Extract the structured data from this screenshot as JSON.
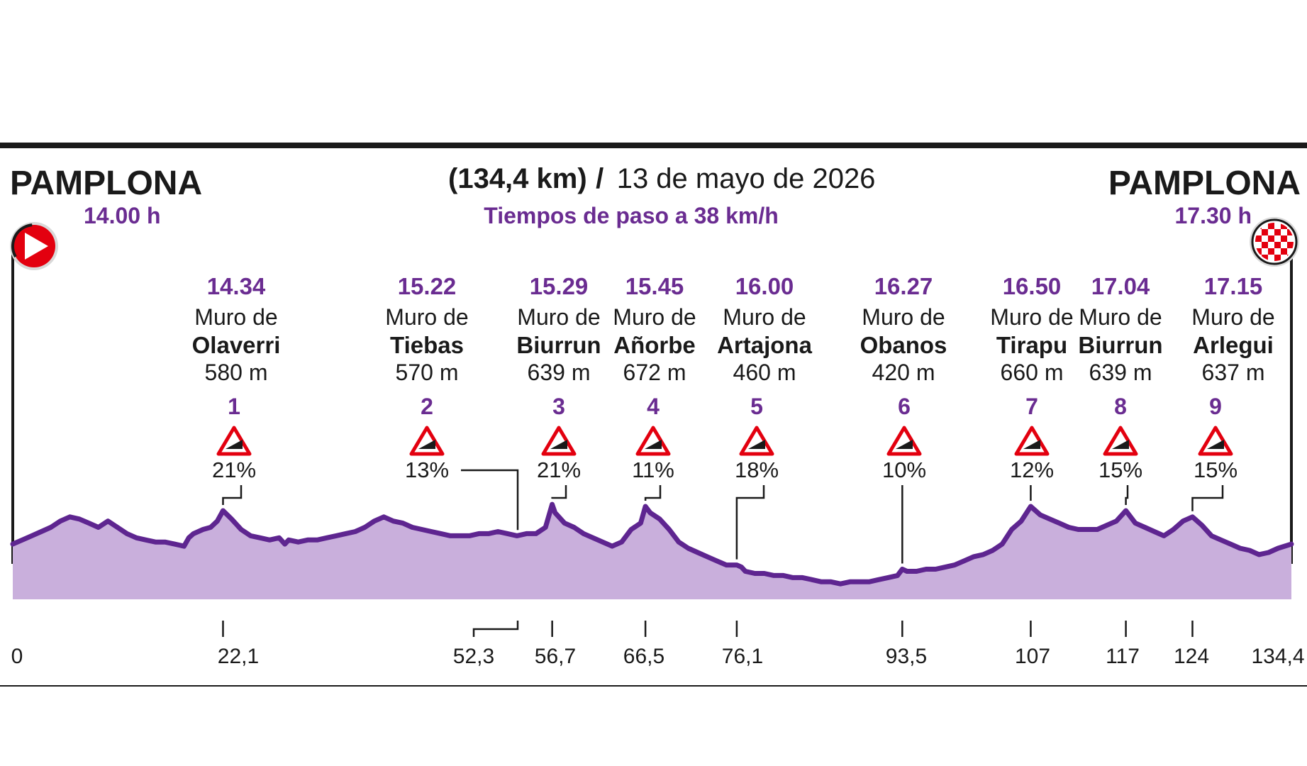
{
  "header": {
    "start_city": "PAMPLONA",
    "start_time": "14.00 h",
    "finish_city": "PAMPLONA",
    "finish_time": "17.30 h",
    "distance": "(134,4 km)",
    "separator": "/",
    "date": "13 de mayo de 2026",
    "subtitle": "Tiempos de paso a 38 km/h"
  },
  "icons": {
    "start": "start-play-icon",
    "finish": "finish-checkered-flag-icon",
    "climb": "climb-triangle-icon"
  },
  "colors": {
    "accent": "#6a2c91",
    "profile_fill": "#c9afdc",
    "profile_line": "#5e2590",
    "start_red": "#e3000f",
    "text": "#1a1a1a"
  },
  "chart_data": {
    "type": "area",
    "xlim": [
      0,
      134.4
    ],
    "ylim": [
      0,
      100
    ],
    "profile": [
      [
        0,
        23
      ],
      [
        1,
        25
      ],
      [
        2,
        27
      ],
      [
        3,
        29
      ],
      [
        4,
        31
      ],
      [
        5,
        34
      ],
      [
        6,
        36
      ],
      [
        7,
        35
      ],
      [
        8,
        33
      ],
      [
        9,
        31
      ],
      [
        10,
        34
      ],
      [
        11,
        31
      ],
      [
        12,
        28
      ],
      [
        13,
        26
      ],
      [
        14,
        25
      ],
      [
        15,
        24
      ],
      [
        16,
        24
      ],
      [
        17,
        23
      ],
      [
        18,
        22
      ],
      [
        18.5,
        26
      ],
      [
        19,
        28
      ],
      [
        20,
        30
      ],
      [
        20.8,
        31
      ],
      [
        21.5,
        34
      ],
      [
        22.1,
        39
      ],
      [
        23,
        35
      ],
      [
        24,
        30
      ],
      [
        25,
        27
      ],
      [
        26,
        26
      ],
      [
        27,
        25
      ],
      [
        28,
        26
      ],
      [
        28.6,
        23
      ],
      [
        29,
        25
      ],
      [
        30,
        24
      ],
      [
        31,
        25
      ],
      [
        32,
        25
      ],
      [
        33,
        26
      ],
      [
        34,
        27
      ],
      [
        35,
        28
      ],
      [
        36,
        29
      ],
      [
        37,
        31
      ],
      [
        38,
        34
      ],
      [
        39,
        36
      ],
      [
        40,
        34
      ],
      [
        41,
        33
      ],
      [
        42,
        31
      ],
      [
        43,
        30
      ],
      [
        44,
        29
      ],
      [
        45,
        28
      ],
      [
        46,
        27
      ],
      [
        47,
        27
      ],
      [
        48,
        27
      ],
      [
        49,
        28
      ],
      [
        50,
        28
      ],
      [
        51,
        29
      ],
      [
        52,
        28
      ],
      [
        53,
        27
      ],
      [
        54,
        28
      ],
      [
        55,
        28
      ],
      [
        56,
        31
      ],
      [
        56.7,
        42
      ],
      [
        57,
        38
      ],
      [
        58,
        33
      ],
      [
        59,
        31
      ],
      [
        60,
        28
      ],
      [
        61,
        26
      ],
      [
        62,
        24
      ],
      [
        63,
        22
      ],
      [
        64,
        24
      ],
      [
        65,
        30
      ],
      [
        66,
        33
      ],
      [
        66.5,
        41
      ],
      [
        67,
        38
      ],
      [
        68,
        35
      ],
      [
        69,
        30
      ],
      [
        70,
        24
      ],
      [
        71,
        21
      ],
      [
        72,
        19
      ],
      [
        73,
        17
      ],
      [
        74,
        15
      ],
      [
        75,
        13
      ],
      [
        76.1,
        13
      ],
      [
        76.6,
        12
      ],
      [
        77,
        10
      ],
      [
        78,
        9
      ],
      [
        79,
        9
      ],
      [
        80,
        8
      ],
      [
        81,
        8
      ],
      [
        82,
        7
      ],
      [
        83,
        7
      ],
      [
        84,
        6
      ],
      [
        85,
        5
      ],
      [
        86,
        5
      ],
      [
        87,
        4
      ],
      [
        88,
        5
      ],
      [
        89,
        5
      ],
      [
        90,
        5
      ],
      [
        91,
        6
      ],
      [
        92,
        7
      ],
      [
        93,
        8
      ],
      [
        93.5,
        11
      ],
      [
        94,
        10
      ],
      [
        95,
        10
      ],
      [
        96,
        11
      ],
      [
        97,
        11
      ],
      [
        98,
        12
      ],
      [
        99,
        13
      ],
      [
        100,
        15
      ],
      [
        101,
        17
      ],
      [
        102,
        18
      ],
      [
        103,
        20
      ],
      [
        104,
        23
      ],
      [
        105,
        30
      ],
      [
        106,
        34
      ],
      [
        107,
        41
      ],
      [
        108,
        37
      ],
      [
        109,
        35
      ],
      [
        110,
        33
      ],
      [
        111,
        31
      ],
      [
        112,
        30
      ],
      [
        113,
        30
      ],
      [
        114,
        30
      ],
      [
        115,
        32
      ],
      [
        116,
        34
      ],
      [
        117,
        39
      ],
      [
        118,
        33
      ],
      [
        119,
        31
      ],
      [
        120,
        29
      ],
      [
        121,
        27
      ],
      [
        122,
        30
      ],
      [
        123,
        34
      ],
      [
        124,
        36
      ],
      [
        125,
        32
      ],
      [
        126,
        27
      ],
      [
        127,
        25
      ],
      [
        128,
        23
      ],
      [
        129,
        21
      ],
      [
        130,
        20
      ],
      [
        131,
        18
      ],
      [
        132,
        19
      ],
      [
        133,
        21
      ],
      [
        134.4,
        23
      ]
    ],
    "x_ticks": [
      "0",
      "22,1",
      "52,3",
      "56,7",
      "66,5",
      "76,1",
      "93,5",
      "107",
      "117",
      "124",
      "134,4"
    ],
    "climbs": [
      {
        "number": "1",
        "time": "14.34",
        "prefix": "Muro de",
        "name": "Olaverri",
        "altitude": "580 m",
        "gradient": "21%",
        "km_label": "22,1",
        "km": 22.1
      },
      {
        "number": "2",
        "time": "15.22",
        "prefix": "Muro de",
        "name": "Tiebas",
        "altitude": "570 m",
        "gradient": "13%",
        "km_label": "52,3",
        "km": 52.3
      },
      {
        "number": "3",
        "time": "15.29",
        "prefix": "Muro de",
        "name": "Biurrun",
        "altitude": "639 m",
        "gradient": "21%",
        "km_label": "56,7",
        "km": 56.7
      },
      {
        "number": "4",
        "time": "15.45",
        "prefix": "Muro de",
        "name": "Añorbe",
        "altitude": "672 m",
        "gradient": "11%",
        "km_label": "66,5",
        "km": 66.5
      },
      {
        "number": "5",
        "time": "16.00",
        "prefix": "Muro de",
        "name": "Artajona",
        "altitude": "460 m",
        "gradient": "18%",
        "km_label": "76,1",
        "km": 76.1
      },
      {
        "number": "6",
        "time": "16.27",
        "prefix": "Muro de",
        "name": "Obanos",
        "altitude": "420 m",
        "gradient": "10%",
        "km_label": "93,5",
        "km": 93.5
      },
      {
        "number": "7",
        "time": "16.50",
        "prefix": "Muro de",
        "name": "Tirapu",
        "altitude": "660 m",
        "gradient": "12%",
        "km_label": "107",
        "km": 107
      },
      {
        "number": "8",
        "time": "17.04",
        "prefix": "Muro de",
        "name": "Biurrun",
        "altitude": "639 m",
        "gradient": "15%",
        "km_label": "117",
        "km": 117
      },
      {
        "number": "9",
        "time": "17.15",
        "prefix": "Muro de",
        "name": "Arlegui",
        "altitude": "637 m",
        "gradient": "15%",
        "km_label": "124",
        "km": 124
      }
    ]
  }
}
